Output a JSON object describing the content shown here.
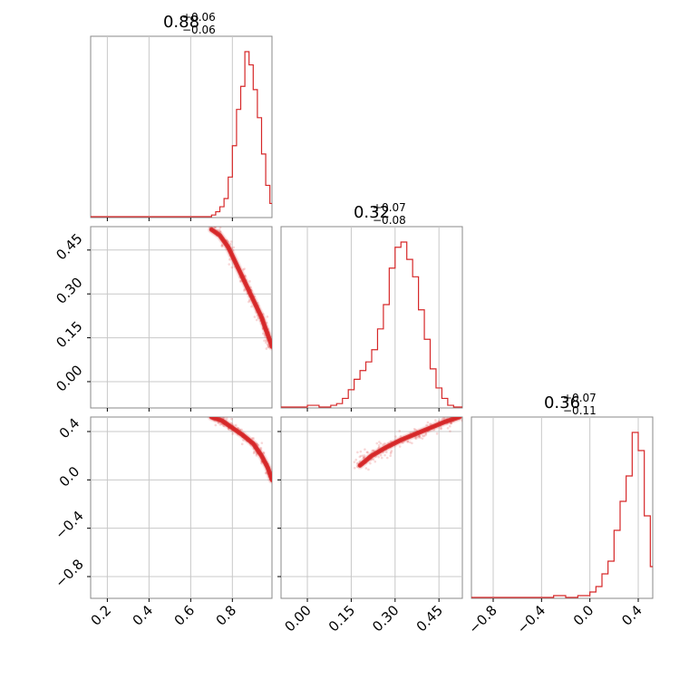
{
  "chart_data": {
    "type": "corner",
    "color": "#d62728",
    "grid": true,
    "parameters": [
      {
        "range": [
          0.12,
          0.99
        ],
        "ticks": [
          0.2,
          0.4,
          0.6,
          0.8
        ],
        "tick_labels": [
          "0.2",
          "0.4",
          "0.6",
          "0.8"
        ]
      },
      {
        "range": [
          -0.09,
          0.53
        ],
        "ticks": [
          0.0,
          0.15,
          0.3,
          0.45
        ],
        "tick_labels": [
          "0.00",
          "0.15",
          "0.30",
          "0.45"
        ]
      },
      {
        "range": [
          -0.98,
          0.52
        ],
        "ticks": [
          -0.8,
          -0.4,
          0.0,
          0.4
        ],
        "tick_labels": [
          "−0.8",
          "−0.4",
          "0.0",
          "0.4"
        ]
      }
    ],
    "titles": [
      {
        "median": "0.88",
        "upper": "+0.06",
        "lower": "−0.06"
      },
      {
        "median": "0.32",
        "upper": "+0.07",
        "lower": "−0.08"
      },
      {
        "median": "0.36",
        "upper": "+0.07",
        "lower": "−0.11"
      }
    ],
    "histograms": [
      {
        "bin_edges": [
          0.7,
          0.72,
          0.74,
          0.76,
          0.78,
          0.8,
          0.82,
          0.84,
          0.86,
          0.88,
          0.9,
          0.92,
          0.94,
          0.96,
          0.98,
          0.99
        ],
        "counts": [
          1,
          3,
          6,
          11,
          24,
          43,
          65,
          79,
          100,
          92,
          77,
          60,
          38,
          19,
          8
        ]
      },
      {
        "bin_edges": [
          -0.09,
          0.0,
          0.04,
          0.08,
          0.1,
          0.12,
          0.14,
          0.16,
          0.18,
          0.2,
          0.22,
          0.24,
          0.26,
          0.28,
          0.3,
          0.32,
          0.34,
          0.36,
          0.38,
          0.4,
          0.42,
          0.44,
          0.46,
          0.48,
          0.5,
          0.53
        ],
        "counts": [
          0,
          1,
          0,
          1,
          2,
          5,
          10,
          16,
          21,
          26,
          33,
          45,
          59,
          80,
          92,
          95,
          85,
          75,
          56,
          39,
          22,
          11,
          5,
          1,
          0
        ]
      },
      {
        "bin_edges": [
          -0.98,
          -0.3,
          -0.2,
          -0.1,
          0.0,
          0.05,
          0.1,
          0.15,
          0.2,
          0.25,
          0.3,
          0.35,
          0.4,
          0.45,
          0.5,
          0.52
        ],
        "counts": [
          0,
          1,
          0,
          1,
          3,
          6,
          13,
          20,
          37,
          53,
          67,
          91,
          81,
          45,
          17
        ]
      }
    ]
  }
}
